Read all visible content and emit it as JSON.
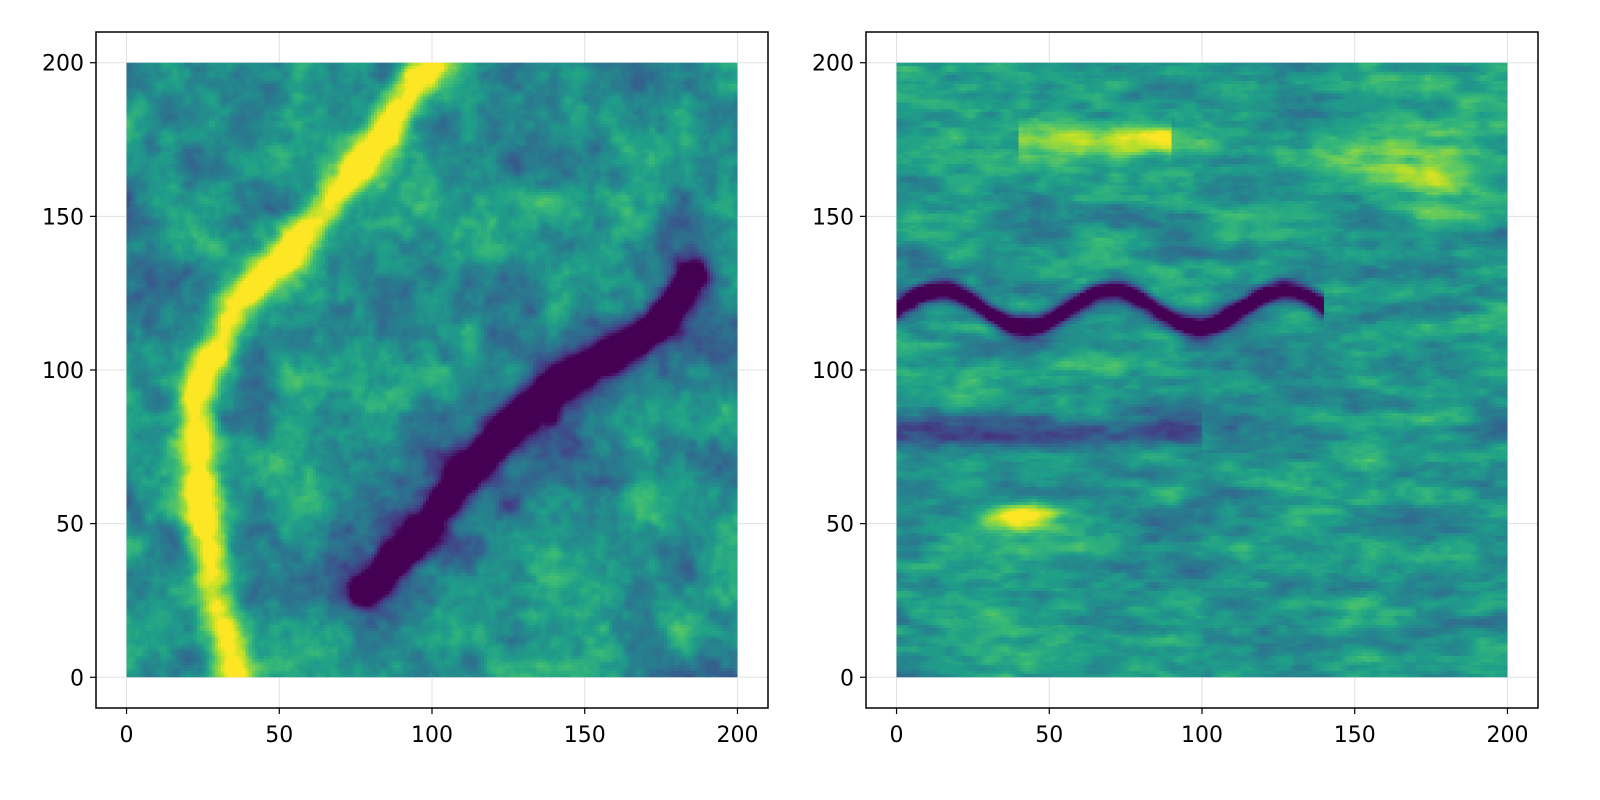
{
  "chart_data": [
    {
      "type": "heatmap",
      "title": "",
      "xlabel": "",
      "ylabel": "",
      "xlim": [
        -10,
        210
      ],
      "ylim": [
        -10,
        210
      ],
      "x_ticks": [
        0,
        50,
        100,
        150,
        200
      ],
      "y_ticks": [
        0,
        50,
        100,
        150,
        200
      ],
      "x_tick_labels": [
        "0",
        "50",
        "100",
        "150",
        "200"
      ],
      "y_tick_labels": [
        "0",
        "50",
        "100",
        "150",
        "200"
      ],
      "grid": true,
      "colormap": "viridis",
      "data_extent": {
        "x": [
          0,
          200
        ],
        "y": [
          0,
          200
        ]
      },
      "features": "Low-value channel running diagonally from about (80,30) to (185,130); high-value band from about (30,0) up to (100,200)"
    },
    {
      "type": "heatmap",
      "title": "",
      "xlabel": "",
      "ylabel": "",
      "xlim": [
        -10,
        210
      ],
      "ylim": [
        -10,
        210
      ],
      "x_ticks": [
        0,
        50,
        100,
        150,
        200
      ],
      "y_ticks": [
        0,
        50,
        100,
        150,
        200
      ],
      "x_tick_labels": [
        "0",
        "50",
        "100",
        "150",
        "200"
      ],
      "y_tick_labels": [
        "0",
        "50",
        "100",
        "150",
        "200"
      ],
      "grid": true,
      "colormap": "viridis",
      "data_extent": {
        "x": [
          0,
          200
        ],
        "y": [
          0,
          200
        ]
      },
      "features": "Low-value wavy channel near y=120 across x=0..135; horizontally layered texture; high values near (40,50) and along y~175"
    }
  ],
  "colors": {
    "viridis": [
      "#440154",
      "#482878",
      "#3e4989",
      "#31688e",
      "#26828e",
      "#1f9e89",
      "#35b779",
      "#6ece58",
      "#b5de2b",
      "#fde725"
    ],
    "axis": "#000000",
    "grid": "#e0e0e0",
    "background": "#ffffff"
  }
}
